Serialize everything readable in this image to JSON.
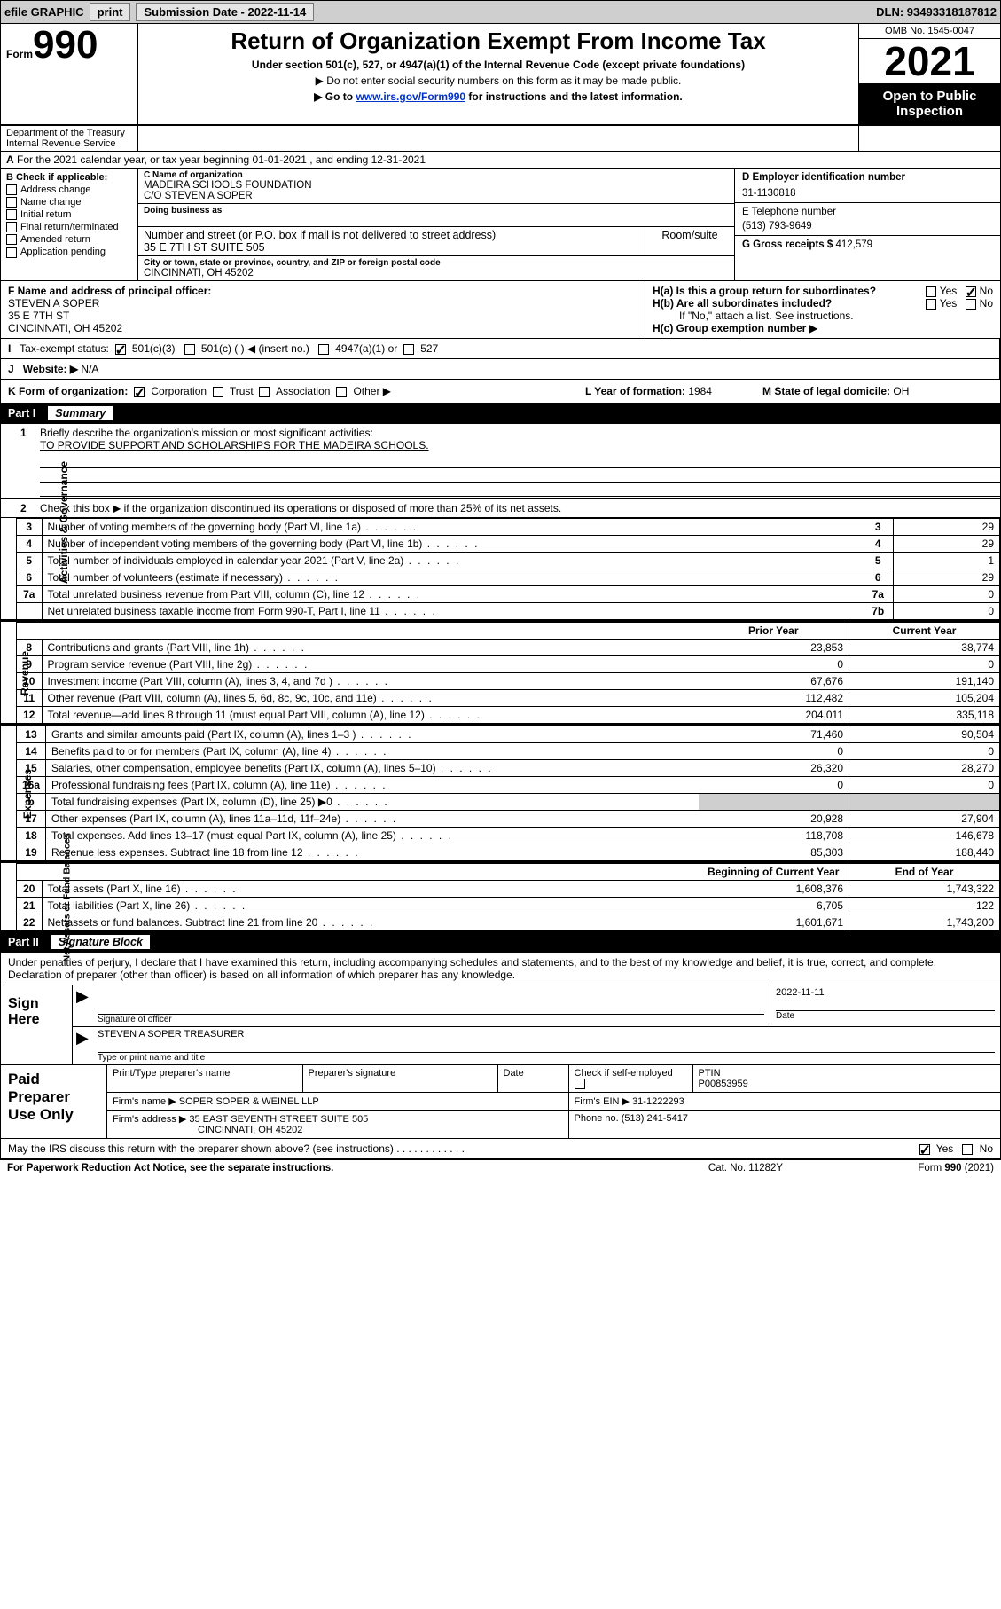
{
  "topbar": {
    "efile": "efile GRAPHIC",
    "print_btn": "print",
    "sub_label": "Submission Date - 2022-11-14",
    "dln": "DLN: 93493318187812"
  },
  "header": {
    "form_word": "Form",
    "form_num": "990",
    "title": "Return of Organization Exempt From Income Tax",
    "subtitle": "Under section 501(c), 527, or 4947(a)(1) of the Internal Revenue Code (except private foundations)",
    "note1": "Do not enter social security numbers on this form as it may be made public.",
    "note2_pre": "Go to ",
    "note2_link": "www.irs.gov/Form990",
    "note2_post": " for instructions and the latest information.",
    "omb": "OMB No. 1545-0047",
    "year": "2021",
    "open": "Open to Public Inspection",
    "dept1": "Department of the Treasury",
    "dept2": "Internal Revenue Service"
  },
  "sectA": {
    "text": "For the 2021 calendar year, or tax year beginning 01-01-2021   , and ending 12-31-2021",
    "ltr": "A"
  },
  "sectB": {
    "left": {
      "hdr": "B Check if applicable:",
      "items": [
        "Address change",
        "Name change",
        "Initial return",
        "Final return/terminated",
        "Amended return",
        "Application pending"
      ]
    },
    "mid": {
      "c_lbl": "C Name of organization",
      "c_val1": "MADEIRA SCHOOLS FOUNDATION",
      "c_val2": "C/O STEVEN A SOPER",
      "dba_lbl": "Doing business as",
      "addr_lbl": "Number and street (or P.O. box if mail is not delivered to street address)",
      "addr_val": "35 E 7TH ST SUITE 505",
      "room_lbl": "Room/suite",
      "city_lbl": "City or town, state or province, country, and ZIP or foreign postal code",
      "city_val": "CINCINNATI, OH  45202"
    },
    "right": {
      "d_lbl": "D Employer identification number",
      "d_val": "31-1130818",
      "e_lbl": "E Telephone number",
      "e_val": "(513) 793-9649",
      "g_lbl": "G Gross receipts $",
      "g_val": "412,579"
    }
  },
  "rowFH": {
    "f_lbl": "F Name and address of principal officer:",
    "f_name": "STEVEN A SOPER",
    "f_addr1": "35 E 7TH ST",
    "f_addr2": "CINCINNATI, OH  45202",
    "ha": "H(a)  Is this a group return for subordinates?",
    "hb": "H(b)  Are all subordinates included?",
    "hb_note": "If \"No,\" attach a list. See instructions.",
    "hc": "H(c)  Group exemption number ▶",
    "yes": "Yes",
    "no": "No"
  },
  "rowI": {
    "lbl": "Tax-exempt status:",
    "opt1": "501(c)(3)",
    "opt2": "501(c) (  ) ◀ (insert no.)",
    "opt3": "4947(a)(1) or",
    "opt4": "527",
    "ltr": "I"
  },
  "rowJ": {
    "lbl": "Website: ▶",
    "val": "N/A",
    "ltr": "J"
  },
  "rowK": {
    "lbl": "K Form of organization:",
    "opts": [
      "Corporation",
      "Trust",
      "Association",
      "Other ▶"
    ],
    "l_lbl": "L Year of formation:",
    "l_val": "1984",
    "m_lbl": "M State of legal domicile:",
    "m_val": "OH"
  },
  "partI": {
    "hdr_no": "Part I",
    "hdr_title": "Summary",
    "line1_lbl": "Briefly describe the organization's mission or most significant activities:",
    "line1_val": "TO PROVIDE SUPPORT AND SCHOLARSHIPS FOR THE MADEIRA SCHOOLS.",
    "line2": "Check this box ▶       if the organization discontinued its operations or disposed of more than 25% of its net assets.",
    "gov_label": "Activities & Governance",
    "rev_label": "Revenue",
    "exp_label": "Expenses",
    "net_label": "Net Assets or Fund Balances",
    "rows_gov": [
      {
        "n": "3",
        "d": "Number of voting members of the governing body (Part VI, line 1a)",
        "k": "3",
        "v": "29"
      },
      {
        "n": "4",
        "d": "Number of independent voting members of the governing body (Part VI, line 1b)",
        "k": "4",
        "v": "29"
      },
      {
        "n": "5",
        "d": "Total number of individuals employed in calendar year 2021 (Part V, line 2a)",
        "k": "5",
        "v": "1"
      },
      {
        "n": "6",
        "d": "Total number of volunteers (estimate if necessary)",
        "k": "6",
        "v": "29"
      },
      {
        "n": "7a",
        "d": "Total unrelated business revenue from Part VIII, column (C), line 12",
        "k": "7a",
        "v": "0"
      },
      {
        "n": "",
        "d": "Net unrelated business taxable income from Form 990-T, Part I, line 11",
        "k": "7b",
        "v": "0"
      }
    ],
    "col_prior": "Prior Year",
    "col_current": "Current Year",
    "rows_rev": [
      {
        "n": "8",
        "d": "Contributions and grants (Part VIII, line 1h)",
        "p": "23,853",
        "c": "38,774"
      },
      {
        "n": "9",
        "d": "Program service revenue (Part VIII, line 2g)",
        "p": "0",
        "c": "0"
      },
      {
        "n": "10",
        "d": "Investment income (Part VIII, column (A), lines 3, 4, and 7d )",
        "p": "67,676",
        "c": "191,140"
      },
      {
        "n": "11",
        "d": "Other revenue (Part VIII, column (A), lines 5, 6d, 8c, 9c, 10c, and 11e)",
        "p": "112,482",
        "c": "105,204"
      },
      {
        "n": "12",
        "d": "Total revenue—add lines 8 through 11 (must equal Part VIII, column (A), line 12)",
        "p": "204,011",
        "c": "335,118"
      }
    ],
    "rows_exp": [
      {
        "n": "13",
        "d": "Grants and similar amounts paid (Part IX, column (A), lines 1–3 )",
        "p": "71,460",
        "c": "90,504"
      },
      {
        "n": "14",
        "d": "Benefits paid to or for members (Part IX, column (A), line 4)",
        "p": "0",
        "c": "0"
      },
      {
        "n": "15",
        "d": "Salaries, other compensation, employee benefits (Part IX, column (A), lines 5–10)",
        "p": "26,320",
        "c": "28,270"
      },
      {
        "n": "16a",
        "d": "Professional fundraising fees (Part IX, column (A), line 11e)",
        "p": "0",
        "c": "0"
      },
      {
        "n": "b",
        "d": "Total fundraising expenses (Part IX, column (D), line 25) ▶0",
        "p": "",
        "c": "",
        "shade": true
      },
      {
        "n": "17",
        "d": "Other expenses (Part IX, column (A), lines 11a–11d, 11f–24e)",
        "p": "20,928",
        "c": "27,904"
      },
      {
        "n": "18",
        "d": "Total expenses. Add lines 13–17 (must equal Part IX, column (A), line 25)",
        "p": "118,708",
        "c": "146,678"
      },
      {
        "n": "19",
        "d": "Revenue less expenses. Subtract line 18 from line 12",
        "p": "85,303",
        "c": "188,440"
      }
    ],
    "col_beg": "Beginning of Current Year",
    "col_end": "End of Year",
    "rows_net": [
      {
        "n": "20",
        "d": "Total assets (Part X, line 16)",
        "p": "1,608,376",
        "c": "1,743,322"
      },
      {
        "n": "21",
        "d": "Total liabilities (Part X, line 26)",
        "p": "6,705",
        "c": "122"
      },
      {
        "n": "22",
        "d": "Net assets or fund balances. Subtract line 21 from line 20",
        "p": "1,601,671",
        "c": "1,743,200"
      }
    ]
  },
  "partII": {
    "hdr_no": "Part II",
    "hdr_title": "Signature Block",
    "decl": "Under penalties of perjury, I declare that I have examined this return, including accompanying schedules and statements, and to the best of my knowledge and belief, it is true, correct, and complete. Declaration of preparer (other than officer) is based on all information of which preparer has any knowledge.",
    "sign_here": "Sign Here",
    "sig_officer_lbl": "Signature of officer",
    "date_lbl": "Date",
    "date_val": "2022-11-11",
    "name_title": "STEVEN A SOPER  TREASURER",
    "name_title_lbl": "Type or print name and title"
  },
  "prep": {
    "title": "Paid Preparer Use Only",
    "r1": {
      "c1": "Print/Type preparer's name",
      "c2": "Preparer's signature",
      "c3": "Date",
      "c4_lbl": "Check         if self-employed",
      "c5_lbl": "PTIN",
      "c5_val": "P00853959"
    },
    "r2": {
      "lbl": "Firm's name    ▶",
      "val": "SOPER SOPER & WEINEL LLP",
      "ein_lbl": "Firm's EIN ▶",
      "ein_val": "31-1222293"
    },
    "r3": {
      "lbl": "Firm's address ▶",
      "val1": "35 EAST SEVENTH STREET SUITE 505",
      "val2": "CINCINNATI, OH  45202",
      "ph_lbl": "Phone no.",
      "ph_val": "(513) 241-5417"
    }
  },
  "footer": {
    "may": "May the IRS discuss this return with the preparer shown above? (see instructions)",
    "yes": "Yes",
    "no": "No",
    "paperwork": "For Paperwork Reduction Act Notice, see the separate instructions.",
    "cat": "Cat. No. 11282Y",
    "form": "Form 990 (2021)"
  }
}
